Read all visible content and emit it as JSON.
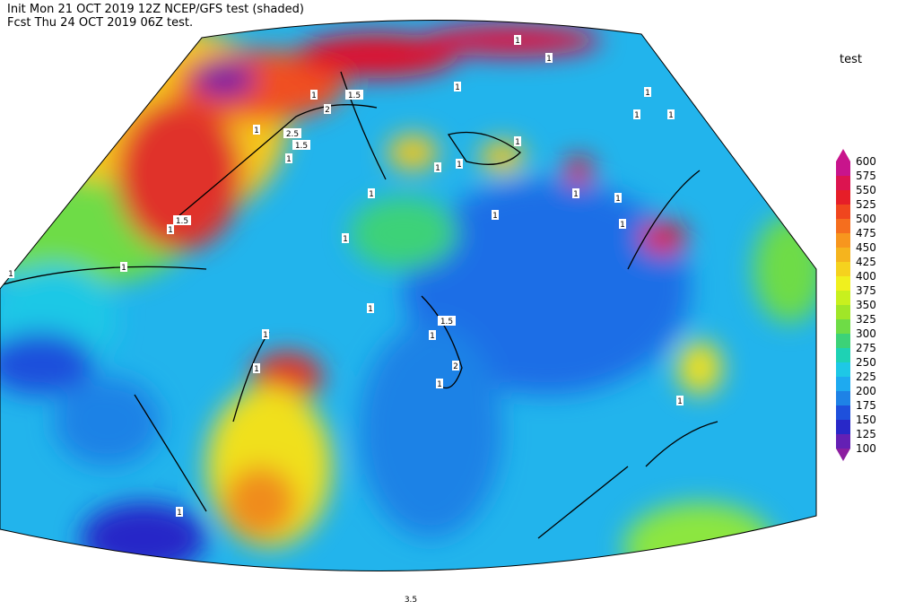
{
  "header": {
    "line1": "Init  Mon 21 OCT 2019 12Z  NCEP/GFS test (shaded)",
    "line2": "Fcst Thu 24 OCT 2019 06Z  test."
  },
  "legend": {
    "title": "test",
    "levels": [
      600,
      575,
      550,
      525,
      500,
      475,
      450,
      425,
      400,
      375,
      350,
      325,
      300,
      275,
      250,
      225,
      200,
      175,
      150,
      125,
      100
    ],
    "colors": [
      "#c8148c",
      "#dc1450",
      "#e61e28",
      "#f0461e",
      "#f56e1e",
      "#f7961e",
      "#f5b41e",
      "#f5d21e",
      "#f0f01e",
      "#c8f01e",
      "#a0e628",
      "#6edc46",
      "#3cd278",
      "#1ed2b4",
      "#1ec8e6",
      "#1eaaf0",
      "#1e82e6",
      "#1e50dc",
      "#2828c8",
      "#6420b4"
    ],
    "bottom_color": "#8c1ea0"
  },
  "contour_labels": [
    "1",
    "1",
    "1",
    "1",
    "1",
    "1",
    "1.5",
    "1",
    "2",
    "1",
    "2.5",
    "1.5",
    "1",
    "1",
    "1",
    "1",
    "1",
    "1",
    "1",
    "1",
    "1.5",
    "1",
    "1",
    "1",
    "1",
    "1",
    "1",
    "1.5",
    "1",
    "1",
    "1",
    "2",
    "1",
    "1",
    "1",
    "3.5"
  ]
}
